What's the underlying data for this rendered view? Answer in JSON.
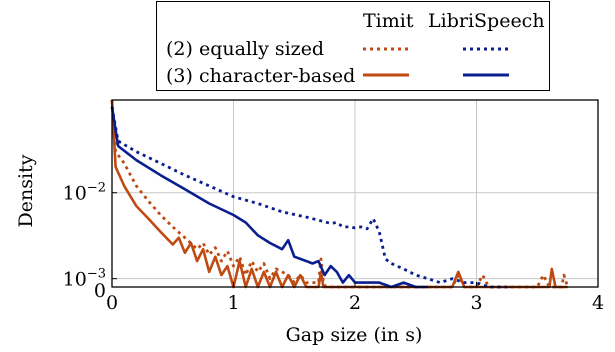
{
  "chart_data": {
    "type": "line",
    "xlabel": "Gap size (in s)",
    "ylabel": "Density",
    "xlim": [
      0,
      4
    ],
    "ylim": [
      0.0008,
      0.12
    ],
    "y_scale": "log",
    "grid": true,
    "x_ticks": [
      "0",
      "1",
      "2",
      "3",
      "4"
    ],
    "y_ticks": [
      {
        "value": 0.01,
        "label": "10",
        "exp": "−2"
      },
      {
        "value": 0.001,
        "label": "10",
        "exp": "−3"
      },
      {
        "value": 0.0008,
        "label": "0",
        "exp": ""
      }
    ],
    "legend": {
      "placement": "top",
      "column_headers": [
        "Timit",
        "LibriSpeech"
      ],
      "rows": [
        "(2) equally sized",
        "(3) character-based"
      ]
    },
    "colors": {
      "timit": "#bf4a12",
      "librispeech": "#0a1f8f"
    },
    "series": [
      {
        "name": "Timit",
        "row": "(2) equally sized",
        "color": "#bf4a12",
        "style": "dotted",
        "x": [
          0,
          0.03,
          0.1,
          0.2,
          0.3,
          0.4,
          0.5,
          0.6,
          0.7,
          0.75,
          0.8,
          0.85,
          0.9,
          0.95,
          1.0,
          1.05,
          1.1,
          1.15,
          1.2,
          1.25,
          1.3,
          1.35,
          1.4,
          1.45,
          1.5,
          1.55,
          1.6,
          1.65,
          1.7,
          1.72,
          1.74,
          1.76,
          1.8,
          2.0,
          2.2,
          2.4,
          2.6,
          2.8,
          2.85,
          2.9,
          3.0,
          3.05,
          3.1,
          3.2,
          3.3,
          3.4,
          3.5,
          3.55,
          3.6,
          3.7,
          3.72,
          3.75
        ],
        "y": [
          0.12,
          0.03,
          0.022,
          0.012,
          0.008,
          0.0055,
          0.004,
          0.003,
          0.0022,
          0.0026,
          0.0019,
          0.0023,
          0.0016,
          0.0021,
          0.0014,
          0.0018,
          0.0011,
          0.0016,
          0.0012,
          0.0015,
          0.001,
          0.0013,
          0.0012,
          0.0011,
          0.0009,
          0.0011,
          0.0009,
          0.0009,
          0.0009,
          0.0017,
          0.0009,
          0.0008,
          0.0008,
          0.0008,
          0.0008,
          0.0008,
          0.0008,
          0.0008,
          0.0011,
          0.0008,
          0.0008,
          0.0011,
          0.0008,
          0.0008,
          0.0008,
          0.0008,
          0.0008,
          0.0011,
          0.0008,
          0.0008,
          0.0011,
          0.0008
        ]
      },
      {
        "name": "Timit",
        "row": "(3) character-based",
        "color": "#bf4a12",
        "style": "solid",
        "x": [
          0,
          0.03,
          0.1,
          0.2,
          0.3,
          0.4,
          0.5,
          0.55,
          0.6,
          0.65,
          0.7,
          0.75,
          0.8,
          0.85,
          0.9,
          0.95,
          1.0,
          1.05,
          1.1,
          1.15,
          1.2,
          1.25,
          1.3,
          1.35,
          1.4,
          1.45,
          1.5,
          1.55,
          1.6,
          1.65,
          1.7,
          1.72,
          1.74,
          1.76,
          1.8,
          2.0,
          2.2,
          2.4,
          2.6,
          2.8,
          2.85,
          2.9,
          3.0,
          3.2,
          3.4,
          3.55,
          3.6,
          3.62,
          3.65,
          3.75
        ],
        "y": [
          0.12,
          0.02,
          0.012,
          0.007,
          0.005,
          0.0035,
          0.0025,
          0.003,
          0.002,
          0.0026,
          0.0016,
          0.0022,
          0.0012,
          0.0018,
          0.0011,
          0.0014,
          0.0008,
          0.0016,
          0.0008,
          0.0013,
          0.0008,
          0.0012,
          0.0008,
          0.0012,
          0.0008,
          0.0011,
          0.0008,
          0.0011,
          0.0008,
          0.0008,
          0.0008,
          0.0012,
          0.0008,
          0.0008,
          0.0008,
          0.0008,
          0.0008,
          0.0008,
          0.0008,
          0.0008,
          0.0012,
          0.0008,
          0.0008,
          0.0008,
          0.0008,
          0.0008,
          0.0008,
          0.0013,
          0.0008,
          0.0008
        ]
      },
      {
        "name": "LibriSpeech",
        "row": "(2) equally sized",
        "color": "#0a1f8f",
        "style": "dotted",
        "x": [
          0,
          0.05,
          0.2,
          0.4,
          0.6,
          0.8,
          1.0,
          1.2,
          1.4,
          1.6,
          1.8,
          1.85,
          1.9,
          1.95,
          2.0,
          2.05,
          2.1,
          2.15,
          2.2,
          2.25,
          2.3,
          2.4,
          2.5,
          2.6,
          2.7,
          2.8,
          2.9,
          3.0,
          3.1,
          3.2,
          3.25
        ],
        "y": [
          0.1,
          0.04,
          0.03,
          0.022,
          0.016,
          0.012,
          0.009,
          0.0075,
          0.006,
          0.0052,
          0.0044,
          0.0045,
          0.004,
          0.004,
          0.0039,
          0.004,
          0.0038,
          0.005,
          0.0035,
          0.0017,
          0.0015,
          0.0013,
          0.0011,
          0.001,
          0.0009,
          0.001,
          0.0009,
          0.0009,
          0.0008,
          0.0008,
          0.0008
        ]
      },
      {
        "name": "LibriSpeech",
        "row": "(3) character-based",
        "color": "#0a1f8f",
        "style": "solid",
        "x": [
          0,
          0.05,
          0.2,
          0.4,
          0.6,
          0.8,
          1.0,
          1.1,
          1.2,
          1.3,
          1.4,
          1.45,
          1.5,
          1.55,
          1.6,
          1.65,
          1.7,
          1.75,
          1.8,
          1.85,
          1.9,
          1.95,
          2.0,
          2.1,
          2.2,
          2.3,
          2.4,
          2.5,
          2.6
        ],
        "y": [
          0.1,
          0.035,
          0.024,
          0.016,
          0.011,
          0.0075,
          0.0055,
          0.0045,
          0.0032,
          0.0026,
          0.0022,
          0.0028,
          0.0018,
          0.0017,
          0.0016,
          0.0015,
          0.0016,
          0.0011,
          0.0014,
          0.0012,
          0.0009,
          0.0011,
          0.0009,
          0.0009,
          0.0009,
          0.0008,
          0.0009,
          0.0008,
          0.0008
        ]
      }
    ]
  }
}
